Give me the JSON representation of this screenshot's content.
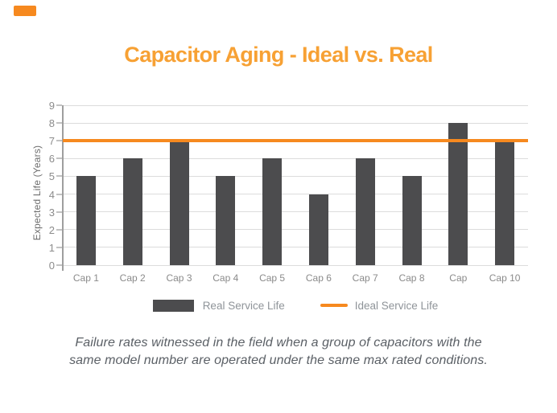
{
  "brand": {
    "accent_block_color": "#F6891F"
  },
  "title": {
    "text": "Capacitor Aging - Ideal vs. Real",
    "color": "#F7A134"
  },
  "chart_data": {
    "type": "bar",
    "title": "Capacitor Aging - Ideal vs. Real",
    "categories": [
      "Cap 1",
      "Cap 2",
      "Cap 3",
      "Cap 4",
      "Cap 5",
      "Cap 6",
      "Cap 7",
      "Cap 8",
      "Cap",
      "Cap 10"
    ],
    "series": [
      {
        "name": "Real Service Life",
        "type": "bar",
        "values": [
          5,
          6,
          7,
          5,
          6,
          4,
          6,
          5,
          8,
          7
        ],
        "color": "#4C4C4E"
      },
      {
        "name": "Ideal Service Life",
        "type": "line",
        "constant_value": 7,
        "values": [
          7,
          7,
          7,
          7,
          7,
          7,
          7,
          7,
          7,
          7
        ],
        "color": "#F6891F"
      }
    ],
    "xlabel": "",
    "ylabel": "Expected Life (Years)",
    "ylim": [
      0,
      9
    ],
    "ytick_step": 1,
    "ytick_labels": [
      "0",
      "1",
      "2",
      "3",
      "4",
      "5",
      "6",
      "7",
      "8",
      "9"
    ],
    "grid": true,
    "legend_position": "bottom-center",
    "axis_color": "#9E9E9E",
    "gridline_color": "#DCDCDC"
  },
  "legend": {
    "items": [
      {
        "label": "Real Service Life",
        "swatch": "rect",
        "color": "#4C4C4E"
      },
      {
        "label": "Ideal Service Life",
        "swatch": "line",
        "color": "#F6891F"
      }
    ]
  },
  "caption": {
    "lines": [
      "Failure rates witnessed in the field when a group of capacitors with the",
      "same model number are operated under the same max rated conditions."
    ]
  }
}
